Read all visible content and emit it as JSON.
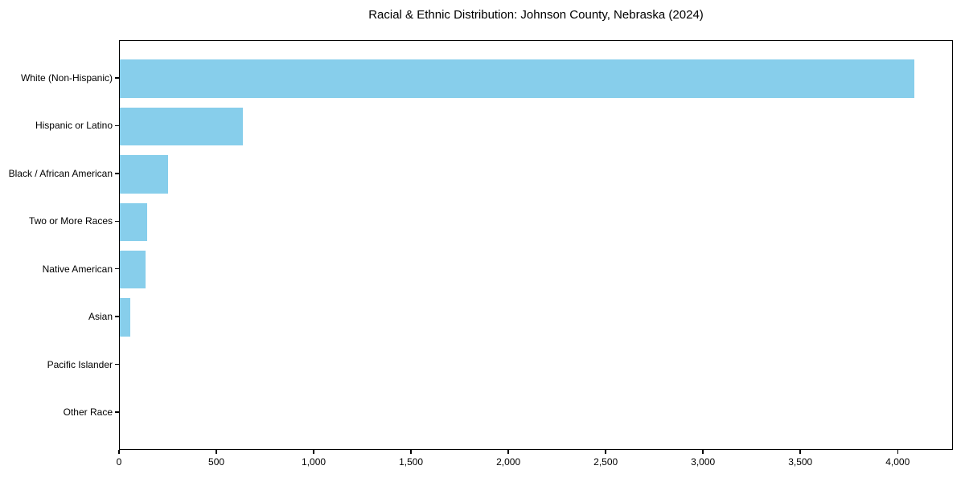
{
  "chart_data": {
    "type": "bar",
    "orientation": "horizontal",
    "title": "Racial & Ethnic Distribution: Johnson County, Nebraska (2024)",
    "categories": [
      "White (Non-Hispanic)",
      "Hispanic or Latino",
      "Black / African American",
      "Two or More Races",
      "Native American",
      "Asian",
      "Pacific Islander",
      "Other Race"
    ],
    "values": [
      4080,
      632,
      248,
      142,
      133,
      55,
      0,
      0
    ],
    "xlabel": "",
    "ylabel": "",
    "xlim": [
      0,
      4284
    ],
    "xticks": [
      0,
      500,
      1000,
      1500,
      2000,
      2500,
      3000,
      3500,
      4000
    ],
    "xtick_labels": [
      "0",
      "500",
      "1,000",
      "1,500",
      "2,000",
      "2,500",
      "3,000",
      "3,500",
      "4,000"
    ],
    "bar_color": "#87CEEB",
    "background_color": "#ffffff",
    "spine_color": "#000000",
    "grid": false,
    "legend": null
  }
}
